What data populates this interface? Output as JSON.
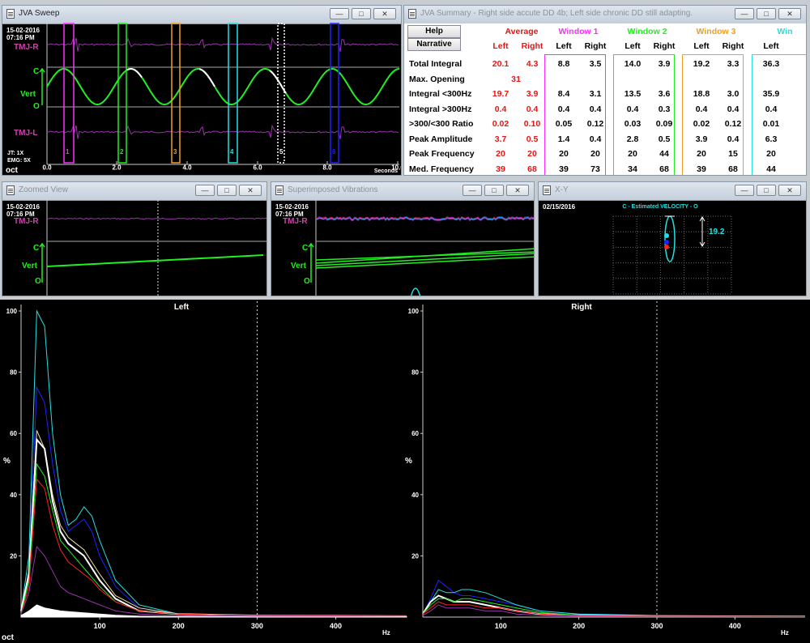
{
  "colors": {
    "magenta": "#ff2cff",
    "green": "#22ee22",
    "orange": "#f0a020",
    "cyan": "#22e0e0",
    "red": "#ff2020",
    "blue": "#2020ff",
    "white": "#ffffff",
    "trace_purple": "#9933aa",
    "label_purple": "#cc44aa",
    "avg_red": "#ee1111"
  },
  "sweep": {
    "title": "JVA Sweep",
    "date": "15-02-2016",
    "time": "07:16 PM",
    "labels": {
      "tmj_r": "TMJ-R",
      "tmj_l": "TMJ-L",
      "c": "C",
      "vert": "Vert",
      "o": "O",
      "jt": "JT: 1X",
      "emg": "EMG: 5X",
      "oct": "oct",
      "seconds": "Seconds"
    },
    "xticks": [
      "0.0",
      "2.0",
      "4.0",
      "6.0",
      "8.0",
      "10.0"
    ],
    "markers": [
      "1",
      "2",
      "3",
      "4",
      "5",
      "6"
    ]
  },
  "summary": {
    "title": "JVA Summary - Right side accute DD 4b; Left side chronic DD still adapting.",
    "help": "Help",
    "narrative": "Narrative",
    "groups": [
      "Average",
      "Window 1",
      "Window 2",
      "Window 3",
      "Win"
    ],
    "sub": [
      "Left",
      "Right"
    ],
    "rows": [
      {
        "label": "Total Integral",
        "avg": [
          "20.1",
          "4.3"
        ],
        "w1": [
          "8.8",
          "3.5"
        ],
        "w2": [
          "14.0",
          "3.9"
        ],
        "w3": [
          "19.2",
          "3.3"
        ],
        "w4": "36.3"
      },
      {
        "label": "Max. Opening",
        "avg": [
          "31",
          ""
        ],
        "w1": [
          "",
          ""
        ],
        "w2": [
          "",
          ""
        ],
        "w3": [
          "",
          ""
        ],
        "w4": ""
      },
      {
        "label": "Integral <300Hz",
        "avg": [
          "19.7",
          "3.9"
        ],
        "w1": [
          "8.4",
          "3.1"
        ],
        "w2": [
          "13.5",
          "3.6"
        ],
        "w3": [
          "18.8",
          "3.0"
        ],
        "w4": "35.9"
      },
      {
        "label": "Integral >300Hz",
        "avg": [
          "0.4",
          "0.4"
        ],
        "w1": [
          "0.4",
          "0.4"
        ],
        "w2": [
          "0.4",
          "0.3"
        ],
        "w3": [
          "0.4",
          "0.4"
        ],
        "w4": "0.4"
      },
      {
        "label": ">300/<300 Ratio",
        "avg": [
          "0.02",
          "0.10"
        ],
        "w1": [
          "0.05",
          "0.12"
        ],
        "w2": [
          "0.03",
          "0.09"
        ],
        "w3": [
          "0.02",
          "0.12"
        ],
        "w4": "0.01"
      },
      {
        "label": "Peak Amplitude",
        "avg": [
          "3.7",
          "0.5"
        ],
        "w1": [
          "1.4",
          "0.4"
        ],
        "w2": [
          "2.8",
          "0.5"
        ],
        "w3": [
          "3.9",
          "0.4"
        ],
        "w4": "6.3"
      },
      {
        "label": "Peak Frequency",
        "avg": [
          "20",
          "20"
        ],
        "w1": [
          "20",
          "20"
        ],
        "w2": [
          "20",
          "44"
        ],
        "w3": [
          "20",
          "15"
        ],
        "w4": "20"
      },
      {
        "label": "Med. Frequency",
        "avg": [
          "39",
          "68"
        ],
        "w1": [
          "39",
          "73"
        ],
        "w2": [
          "34",
          "68"
        ],
        "w3": [
          "39",
          "68"
        ],
        "w4": "44"
      }
    ]
  },
  "zoomed": {
    "title": "Zoomed View",
    "date": "15-02-2016",
    "time": "07:16 PM",
    "tmj_r": "TMJ-R",
    "c": "C",
    "vert": "Vert",
    "o": "O"
  },
  "superimposed": {
    "title": "Superimposed Vibrations",
    "date": "15-02-2016",
    "time": "07:16 PM",
    "tmj_r": "TMJ-R",
    "c": "C",
    "vert": "Vert",
    "o": "O"
  },
  "xy": {
    "title": "X-Y",
    "date": "02/15/2016",
    "caption": "C - Estimated VELOCITY - O",
    "value": "19.2"
  },
  "spectrum": {
    "left_title": "Left",
    "right_title": "Right",
    "ylabel": "%",
    "xunit": "Hz",
    "oct": "oct",
    "yticks": [
      "100",
      "80",
      "60",
      "40",
      "20"
    ],
    "xticks": [
      "100",
      "200",
      "300",
      "400"
    ]
  },
  "chart_data": [
    {
      "type": "line",
      "title": "Left",
      "ylabel": "%",
      "xlabel": "Hz",
      "xlim": [
        0,
        490
      ],
      "ylim": [
        0,
        100
      ],
      "series": [
        {
          "color": "#22e0e0",
          "x": [
            0,
            10,
            20,
            30,
            40,
            50,
            60,
            70,
            80,
            90,
            100,
            120,
            150,
            200,
            300,
            490
          ],
          "values": [
            2,
            20,
            100,
            95,
            60,
            40,
            30,
            32,
            36,
            33,
            25,
            12,
            4,
            1,
            0.5,
            0.3
          ]
        },
        {
          "color": "#2020ff",
          "x": [
            0,
            10,
            20,
            30,
            40,
            50,
            60,
            70,
            80,
            90,
            100,
            120,
            150,
            200,
            300,
            490
          ],
          "values": [
            2,
            15,
            75,
            70,
            50,
            35,
            28,
            30,
            32,
            28,
            20,
            10,
            3,
            1,
            0.5,
            0.3
          ]
        },
        {
          "color": "#f0e0a0",
          "x": [
            0,
            10,
            20,
            30,
            40,
            50,
            60,
            70,
            80,
            90,
            100,
            120,
            150,
            200,
            300,
            490
          ],
          "values": [
            2,
            15,
            61,
            55,
            40,
            30,
            26,
            24,
            22,
            18,
            14,
            7,
            3,
            1,
            0.5,
            0.3
          ]
        },
        {
          "color": "#ffffff",
          "x": [
            0,
            10,
            20,
            30,
            40,
            50,
            60,
            70,
            80,
            90,
            100,
            120,
            150,
            200,
            300,
            490
          ],
          "values": [
            2,
            14,
            58,
            55,
            38,
            28,
            24,
            22,
            20,
            16,
            12,
            6,
            2,
            1,
            0.5,
            0.3
          ]
        },
        {
          "color": "#22ee22",
          "x": [
            0,
            10,
            20,
            30,
            40,
            50,
            60,
            70,
            80,
            90,
            100,
            120,
            150,
            200,
            300,
            490
          ],
          "values": [
            1,
            12,
            50,
            46,
            35,
            25,
            22,
            19,
            16,
            13,
            10,
            5,
            2,
            1,
            0.5,
            0.3
          ]
        },
        {
          "color": "#ff2020",
          "x": [
            0,
            10,
            20,
            30,
            40,
            50,
            60,
            70,
            80,
            90,
            100,
            120,
            150,
            200,
            300,
            490
          ],
          "values": [
            1,
            10,
            45,
            42,
            30,
            22,
            18,
            16,
            14,
            12,
            9,
            5,
            2,
            1,
            0.5,
            0.3
          ]
        },
        {
          "color": "#9933aa",
          "x": [
            0,
            10,
            20,
            30,
            40,
            50,
            60,
            70,
            80,
            90,
            100,
            120,
            150,
            200,
            300,
            490
          ],
          "values": [
            1,
            8,
            23,
            20,
            15,
            10,
            8,
            7,
            6,
            5,
            4,
            2,
            1,
            0.5,
            0.3,
            0.2
          ]
        },
        {
          "color": "#ffffff",
          "x": [
            0,
            10,
            20,
            30,
            40,
            50,
            60,
            70,
            80,
            90,
            100,
            120,
            150,
            200,
            300,
            490
          ],
          "values": [
            0.5,
            2,
            4,
            3,
            2.5,
            2,
            1.8,
            1.6,
            1.4,
            1.2,
            1,
            0.6,
            0.3,
            0.2,
            0.1,
            0.1
          ]
        }
      ]
    },
    {
      "type": "line",
      "title": "Right",
      "ylabel": "%",
      "xlabel": "Hz",
      "xlim": [
        0,
        490
      ],
      "ylim": [
        0,
        100
      ],
      "series": [
        {
          "color": "#2020ff",
          "x": [
            0,
            10,
            20,
            30,
            40,
            50,
            60,
            80,
            100,
            120,
            150,
            200,
            300,
            490
          ],
          "values": [
            1,
            6,
            12,
            10,
            8,
            7,
            7,
            6,
            5,
            4,
            2,
            1,
            0.5,
            0.3
          ]
        },
        {
          "color": "#22e0e0",
          "x": [
            0,
            10,
            20,
            30,
            40,
            50,
            60,
            80,
            100,
            120,
            150,
            200,
            300,
            490
          ],
          "values": [
            1,
            5,
            9,
            8,
            8,
            9,
            9,
            8,
            6,
            4,
            2,
            1,
            0.5,
            0.3
          ]
        },
        {
          "color": "#ffffff",
          "x": [
            0,
            10,
            20,
            30,
            40,
            50,
            60,
            80,
            100,
            120,
            150,
            200,
            300,
            490
          ],
          "values": [
            1,
            5,
            7,
            6,
            5,
            5,
            5,
            4,
            3,
            2,
            1,
            0.6,
            0.3,
            0.2
          ]
        },
        {
          "color": "#22ee22",
          "x": [
            0,
            10,
            20,
            30,
            40,
            50,
            60,
            80,
            100,
            120,
            150,
            200,
            300,
            490
          ],
          "values": [
            1,
            4,
            6,
            6,
            5,
            6,
            6,
            5,
            4,
            3,
            1.5,
            0.6,
            0.3,
            0.2
          ]
        },
        {
          "color": "#ff2020",
          "x": [
            0,
            10,
            20,
            30,
            40,
            50,
            60,
            80,
            100,
            120,
            150,
            200,
            300,
            490
          ],
          "values": [
            1,
            3,
            5,
            4,
            4,
            4,
            4,
            3,
            3,
            2,
            1,
            0.5,
            0.3,
            0.2
          ]
        },
        {
          "color": "#9933aa",
          "x": [
            0,
            10,
            20,
            30,
            40,
            50,
            60,
            80,
            100,
            120,
            150,
            200,
            300,
            490
          ],
          "values": [
            0.5,
            2,
            4,
            3,
            3,
            3,
            3,
            2,
            2,
            1,
            0.6,
            0.3,
            0.2,
            0.1
          ]
        }
      ]
    }
  ]
}
